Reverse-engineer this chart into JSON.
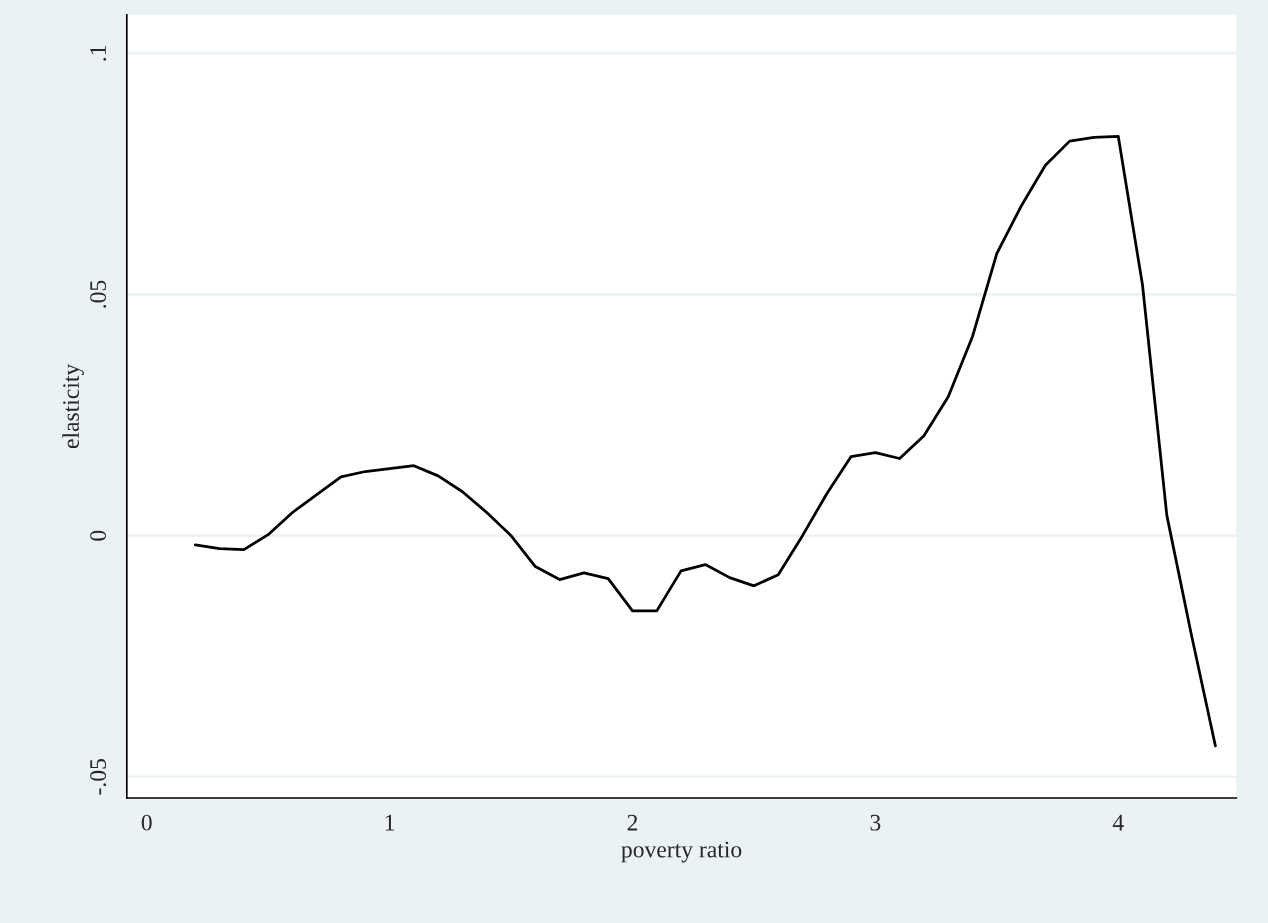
{
  "chart_data": {
    "type": "line",
    "xlabel": "poverty ratio",
    "ylabel": "elasticity",
    "x": [
      0.2,
      0.3,
      0.4,
      0.5,
      0.6,
      0.7,
      0.8,
      0.9,
      1.0,
      1.1,
      1.2,
      1.3,
      1.4,
      1.5,
      1.6,
      1.7,
      1.8,
      1.9,
      2.0,
      2.1,
      2.2,
      2.3,
      2.4,
      2.5,
      2.6,
      2.7,
      2.8,
      2.9,
      3.0,
      3.1,
      3.2,
      3.3,
      3.4,
      3.5,
      3.6,
      3.7,
      3.8,
      3.9,
      4.0,
      4.1,
      4.2,
      4.3,
      4.4
    ],
    "series": [
      {
        "color": "#000000",
        "values": [
          -0.0019,
          -0.0027,
          -0.0029,
          0.0002,
          0.0048,
          0.0085,
          0.0122,
          0.0133,
          0.0139,
          0.0145,
          0.0124,
          0.0091,
          0.0048,
          0.0,
          -0.0064,
          -0.0091,
          -0.0077,
          -0.0089,
          -0.0156,
          -0.0156,
          -0.0073,
          -0.006,
          -0.0087,
          -0.0104,
          -0.0081,
          0.0,
          0.0087,
          0.0164,
          0.0172,
          0.016,
          0.0207,
          0.0288,
          0.0413,
          0.0585,
          0.0683,
          0.0768,
          0.0818,
          0.0826,
          0.0828,
          0.0519,
          0.0042,
          -0.0203,
          -0.0436
        ]
      }
    ],
    "xlim": [
      -0.082,
      4.486
    ],
    "ylim": [
      -0.0544,
      0.108
    ],
    "xticks": [
      0,
      1,
      2,
      3,
      4
    ],
    "yticks": [
      {
        "value": -0.05,
        "label": "-.05"
      },
      {
        "value": 0,
        "label": "0"
      },
      {
        "value": 0.05,
        "label": ".05"
      },
      {
        "value": 0.1,
        "label": ".1"
      }
    ],
    "grid": "y",
    "marker": "none",
    "line_style": "solid"
  }
}
